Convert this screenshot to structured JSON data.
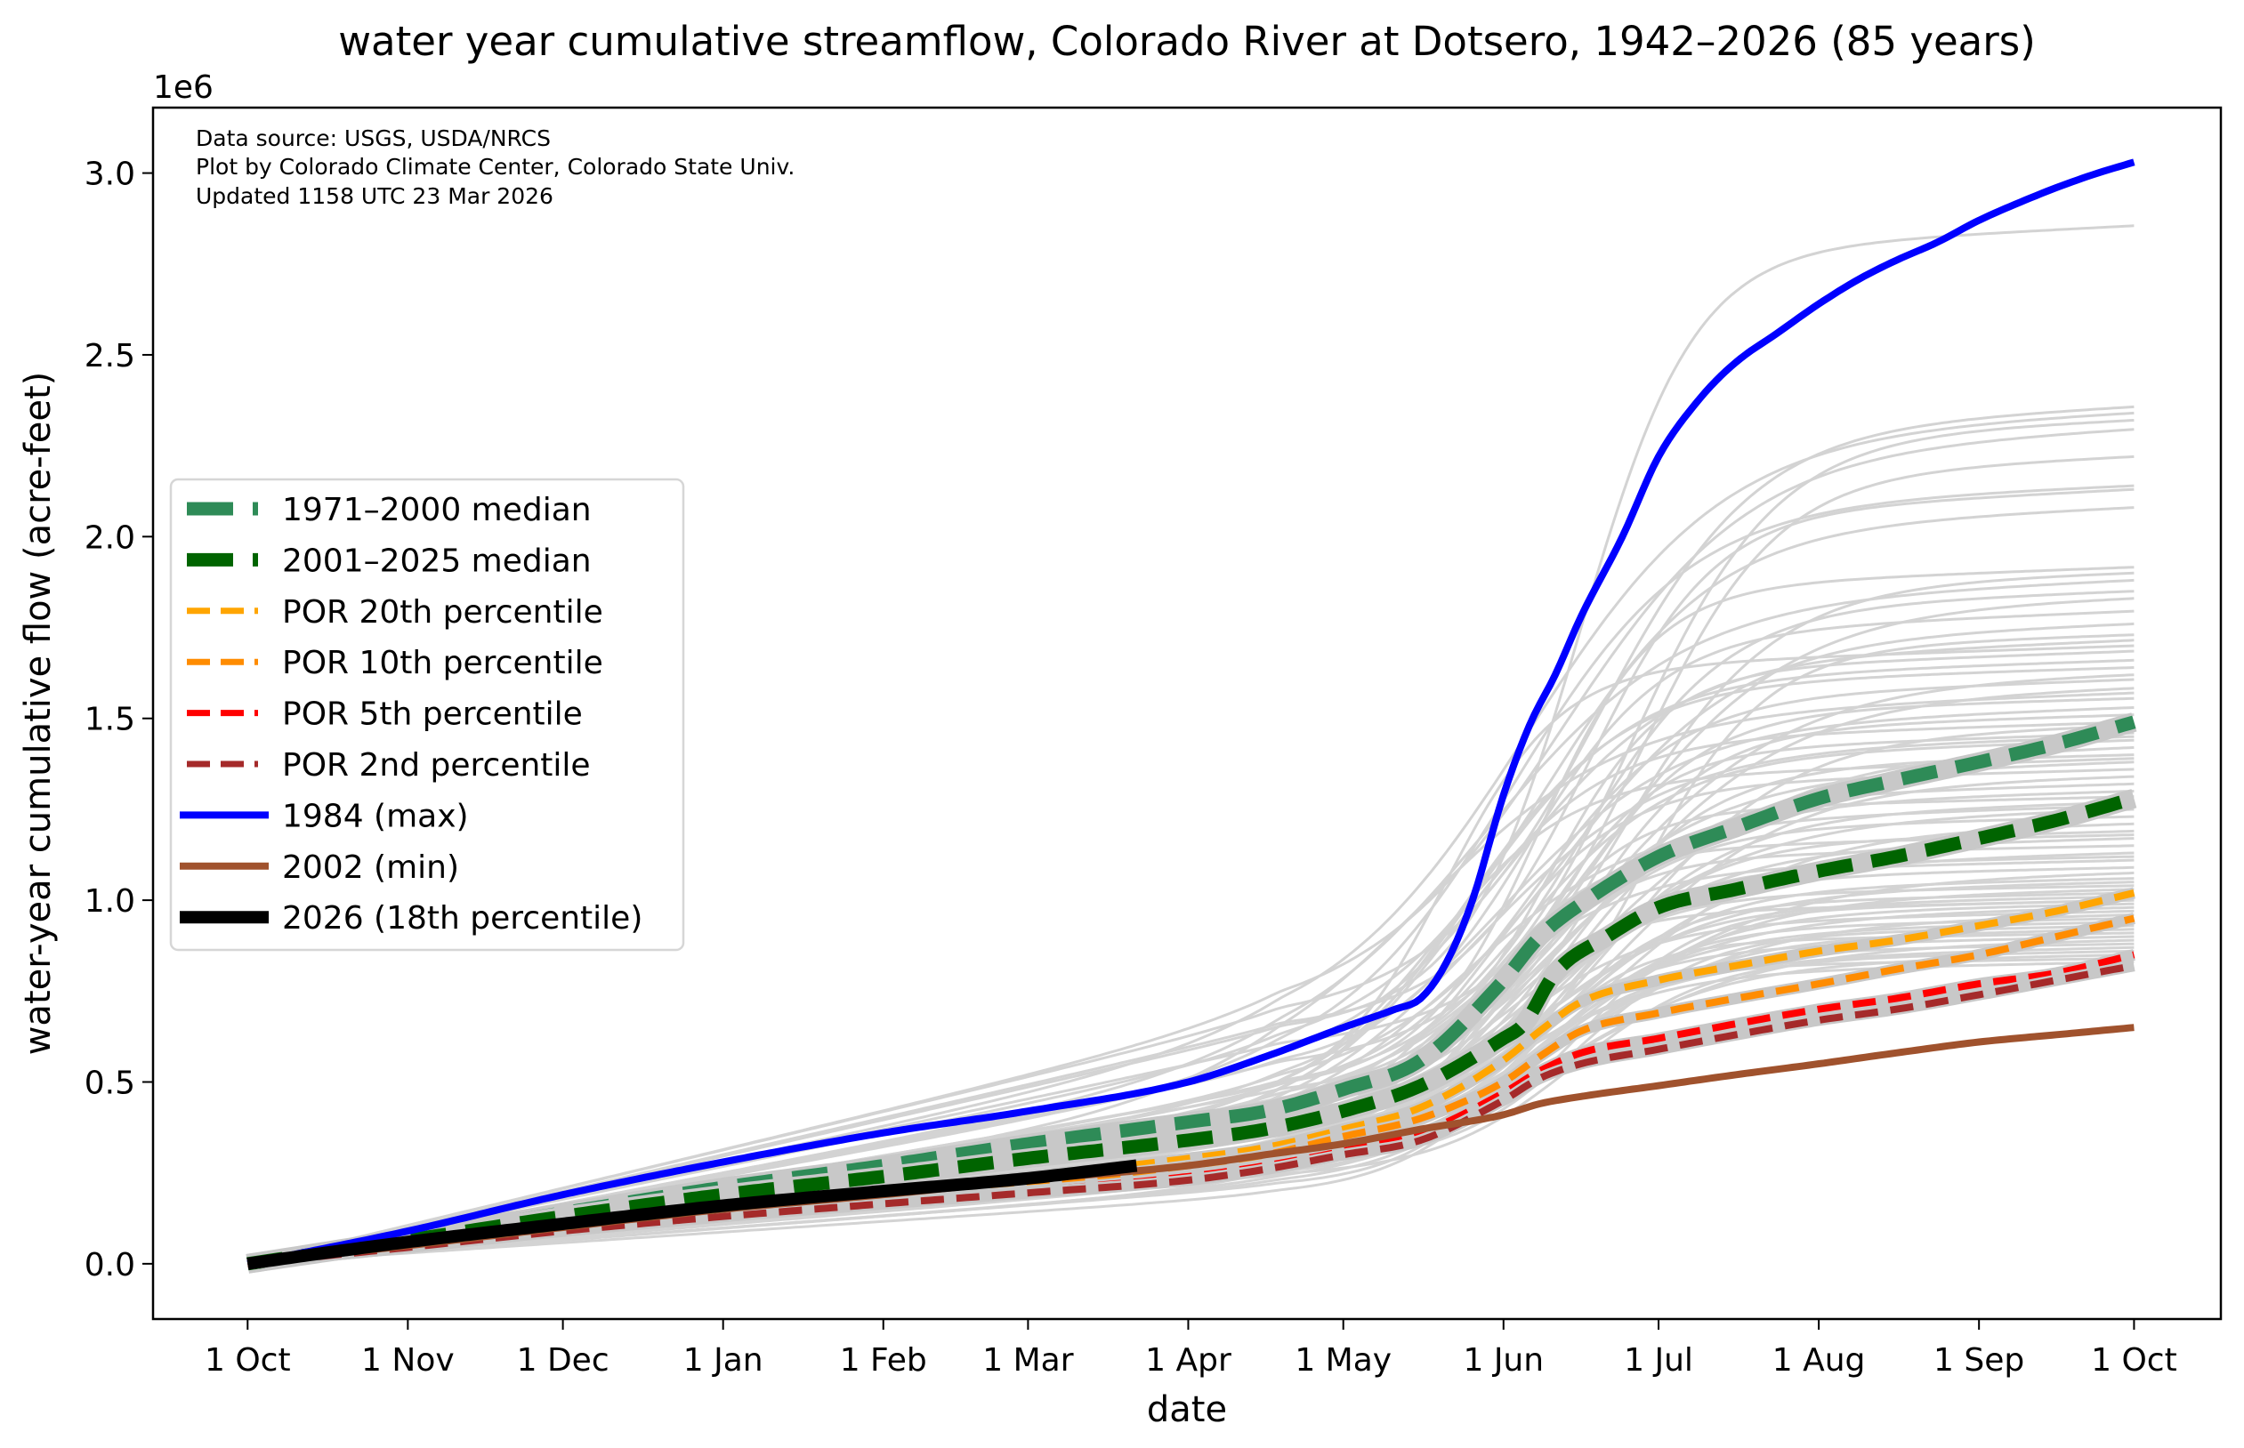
{
  "chart_data": {
    "type": "line",
    "title": "water year cumulative streamflow, Colorado River at Dotsero, 1942–2026 (85 years)",
    "xlabel": "date",
    "ylabel": "water-year cumulative flow (acre-feet)",
    "y_offset_label": "1e6",
    "y_scale": 1000000,
    "xlim_days": [
      -18.3,
      381.8
    ],
    "ylim": [
      -152000,
      3180000
    ],
    "grid": false,
    "legend_placement": "center-left",
    "x_ticks": [
      {
        "day": 0,
        "label": "1 Oct"
      },
      {
        "day": 31,
        "label": "1 Nov"
      },
      {
        "day": 61,
        "label": "1 Dec"
      },
      {
        "day": 92,
        "label": "1 Jan"
      },
      {
        "day": 123,
        "label": "1 Feb"
      },
      {
        "day": 151,
        "label": "1 Mar"
      },
      {
        "day": 182,
        "label": "1 Apr"
      },
      {
        "day": 212,
        "label": "1 May"
      },
      {
        "day": 243,
        "label": "1 Jun"
      },
      {
        "day": 273,
        "label": "1 Jul"
      },
      {
        "day": 304,
        "label": "1 Aug"
      },
      {
        "day": 335,
        "label": "1 Sep"
      },
      {
        "day": 365,
        "label": "1 Oct"
      }
    ],
    "y_ticks": [
      {
        "value": 0,
        "label": "0.0"
      },
      {
        "value": 500000,
        "label": "0.5"
      },
      {
        "value": 1000000,
        "label": "1.0"
      },
      {
        "value": 1500000,
        "label": "1.5"
      },
      {
        "value": 2000000,
        "label": "2.0"
      },
      {
        "value": 2500000,
        "label": "2.5"
      },
      {
        "value": 3000000,
        "label": "3.0"
      }
    ],
    "annotations": [
      "Data source: USGS, USDA/NRCS",
      "Plot by Colorado Climate Center, Colorado State Univ.",
      "Updated 1158 UTC 23 Mar 2026"
    ],
    "background_years": {
      "color": "#d3d3d3",
      "count": 82,
      "final_totals": [
        2855000,
        2357000,
        2340000,
        2320000,
        2295000,
        2220000,
        2140000,
        2130000,
        2080000,
        1916000,
        1900000,
        1880000,
        1850000,
        1830000,
        1795000,
        1760000,
        1730000,
        1715000,
        1685000,
        1660000,
        1620000,
        1607000,
        1583000,
        1555000,
        1530000,
        1510000,
        1480000,
        1460000,
        1440000,
        1420000,
        1400000,
        1380000,
        1360000,
        1340000,
        1320000,
        1300000,
        1285000,
        1270000,
        1250000,
        1230000,
        1210000,
        1190000,
        1170000,
        1150000,
        1130000,
        1110000,
        1090000,
        1075000,
        1060000,
        1050000,
        1040000,
        1030000,
        1020000,
        1010000,
        1000000,
        990000,
        980000,
        970000,
        960000,
        950000,
        940000,
        930000,
        920000,
        910000,
        900000,
        890000,
        880000,
        870000,
        860000,
        850000,
        840000,
        830000,
        1700000,
        1640000,
        1570000,
        1490000,
        1450000,
        1390000,
        1260000,
        1180000,
        1120000,
        1000000
      ],
      "melt_center_days": [
        258,
        262,
        248,
        268,
        255,
        270,
        245,
        260,
        252,
        250,
        265,
        240,
        258,
        262,
        248,
        255,
        270,
        245,
        252,
        238,
        260,
        249,
        263,
        254,
        243,
        258,
        267,
        251,
        246,
        261,
        255,
        249,
        240,
        264,
        257,
        250,
        244,
        259,
        253,
        247,
        262,
        256,
        250,
        241,
        258,
        252,
        246,
        260,
        254,
        248,
        243,
        257,
        251,
        245,
        259,
        253,
        247,
        242,
        256,
        250,
        244,
        258,
        252,
        246,
        241,
        255,
        249,
        243,
        257,
        251,
        245,
        240,
        232,
        236,
        228,
        234,
        238,
        230,
        235,
        237,
        233,
        239
      ]
    },
    "series": [
      {
        "name": "1971–2000 median",
        "color": "#2e8b57",
        "style": "dashed-thick",
        "days": [
          0,
          31,
          61,
          92,
          123,
          151,
          182,
          197,
          212,
          227,
          243,
          250,
          258,
          273,
          288,
          304,
          319,
          335,
          350,
          365
        ],
        "values": [
          0,
          70000,
          140000,
          210000,
          270000,
          330000,
          390000,
          420000,
          480000,
          560000,
          780000,
          900000,
          990000,
          1120000,
          1200000,
          1280000,
          1330000,
          1380000,
          1430000,
          1490000
        ]
      },
      {
        "name": "2001–2025 median",
        "color": "#006400",
        "style": "dashed-thick",
        "days": [
          0,
          31,
          61,
          92,
          123,
          151,
          182,
          197,
          212,
          227,
          243,
          247,
          253,
          263,
          273,
          288,
          304,
          319,
          335,
          350,
          365
        ],
        "values": [
          0,
          65000,
          130000,
          190000,
          240000,
          290000,
          340000,
          370000,
          420000,
          490000,
          620000,
          660000,
          800000,
          900000,
          980000,
          1030000,
          1080000,
          1120000,
          1170000,
          1220000,
          1280000
        ]
      },
      {
        "name": "POR 20th percentile",
        "color": "#ffa500",
        "style": "dashed",
        "days": [
          0,
          31,
          61,
          92,
          123,
          151,
          182,
          197,
          212,
          227,
          243,
          250,
          258,
          273,
          288,
          304,
          319,
          335,
          350,
          365
        ],
        "values": [
          0,
          50000,
          100000,
          150000,
          200000,
          240000,
          290000,
          320000,
          370000,
          430000,
          560000,
          640000,
          720000,
          780000,
          820000,
          860000,
          890000,
          930000,
          970000,
          1020000
        ]
      },
      {
        "name": "POR 10th percentile",
        "color": "#ff8c00",
        "style": "dashed",
        "days": [
          0,
          31,
          61,
          92,
          123,
          151,
          182,
          197,
          212,
          227,
          243,
          250,
          258,
          273,
          288,
          304,
          319,
          335,
          350,
          365
        ],
        "values": [
          0,
          50000,
          100000,
          140000,
          180000,
          220000,
          270000,
          300000,
          350000,
          400000,
          500000,
          570000,
          640000,
          690000,
          730000,
          770000,
          810000,
          850000,
          900000,
          950000
        ]
      },
      {
        "name": "POR 5th percentile",
        "color": "#ff0000",
        "style": "dashed",
        "days": [
          0,
          31,
          61,
          92,
          123,
          151,
          182,
          197,
          212,
          227,
          243,
          250,
          258,
          273,
          288,
          304,
          319,
          335,
          350,
          365
        ],
        "values": [
          0,
          45000,
          90000,
          130000,
          170000,
          200000,
          240000,
          270000,
          310000,
          360000,
          470000,
          530000,
          580000,
          620000,
          660000,
          700000,
          730000,
          770000,
          800000,
          850000
        ]
      },
      {
        "name": "POR 2nd percentile",
        "color": "#a52a2a",
        "style": "dashed",
        "days": [
          0,
          31,
          61,
          92,
          123,
          151,
          182,
          197,
          212,
          227,
          243,
          250,
          258,
          273,
          288,
          304,
          319,
          335,
          350,
          365
        ],
        "values": [
          0,
          45000,
          90000,
          130000,
          165000,
          195000,
          230000,
          260000,
          300000,
          340000,
          450000,
          510000,
          550000,
          590000,
          630000,
          670000,
          700000,
          740000,
          780000,
          820000
        ]
      },
      {
        "name": "1984 (max)",
        "color": "#0000ff",
        "style": "solid",
        "days": [
          0,
          31,
          61,
          92,
          123,
          151,
          182,
          197,
          212,
          222,
          227,
          232,
          237,
          243,
          248,
          253,
          258,
          266,
          273,
          281,
          288,
          296,
          304,
          312,
          319,
          327,
          335,
          343,
          350,
          358,
          365
        ],
        "values": [
          0,
          90000,
          190000,
          280000,
          360000,
          420000,
          500000,
          570000,
          650000,
          700000,
          730000,
          830000,
          1000000,
          1290000,
          1480000,
          1620000,
          1780000,
          2000000,
          2220000,
          2380000,
          2480000,
          2560000,
          2640000,
          2710000,
          2760000,
          2810000,
          2870000,
          2920000,
          2960000,
          3000000,
          3030000
        ]
      },
      {
        "name": "2002 (min)",
        "color": "#a0522d",
        "style": "solid",
        "days": [
          0,
          31,
          61,
          92,
          123,
          151,
          182,
          197,
          212,
          227,
          243,
          250,
          258,
          273,
          288,
          304,
          319,
          335,
          350,
          365
        ],
        "values": [
          0,
          50000,
          100000,
          150000,
          190000,
          230000,
          270000,
          300000,
          330000,
          370000,
          410000,
          440000,
          460000,
          490000,
          520000,
          550000,
          580000,
          610000,
          630000,
          650000
        ]
      },
      {
        "name": "2026 (18th percentile)",
        "color": "#000000",
        "style": "solid-thick",
        "days": [
          0,
          15,
          31,
          61,
          92,
          123,
          151,
          172
        ],
        "values": [
          0,
          30000,
          60000,
          110000,
          160000,
          200000,
          235000,
          270000
        ]
      }
    ]
  }
}
